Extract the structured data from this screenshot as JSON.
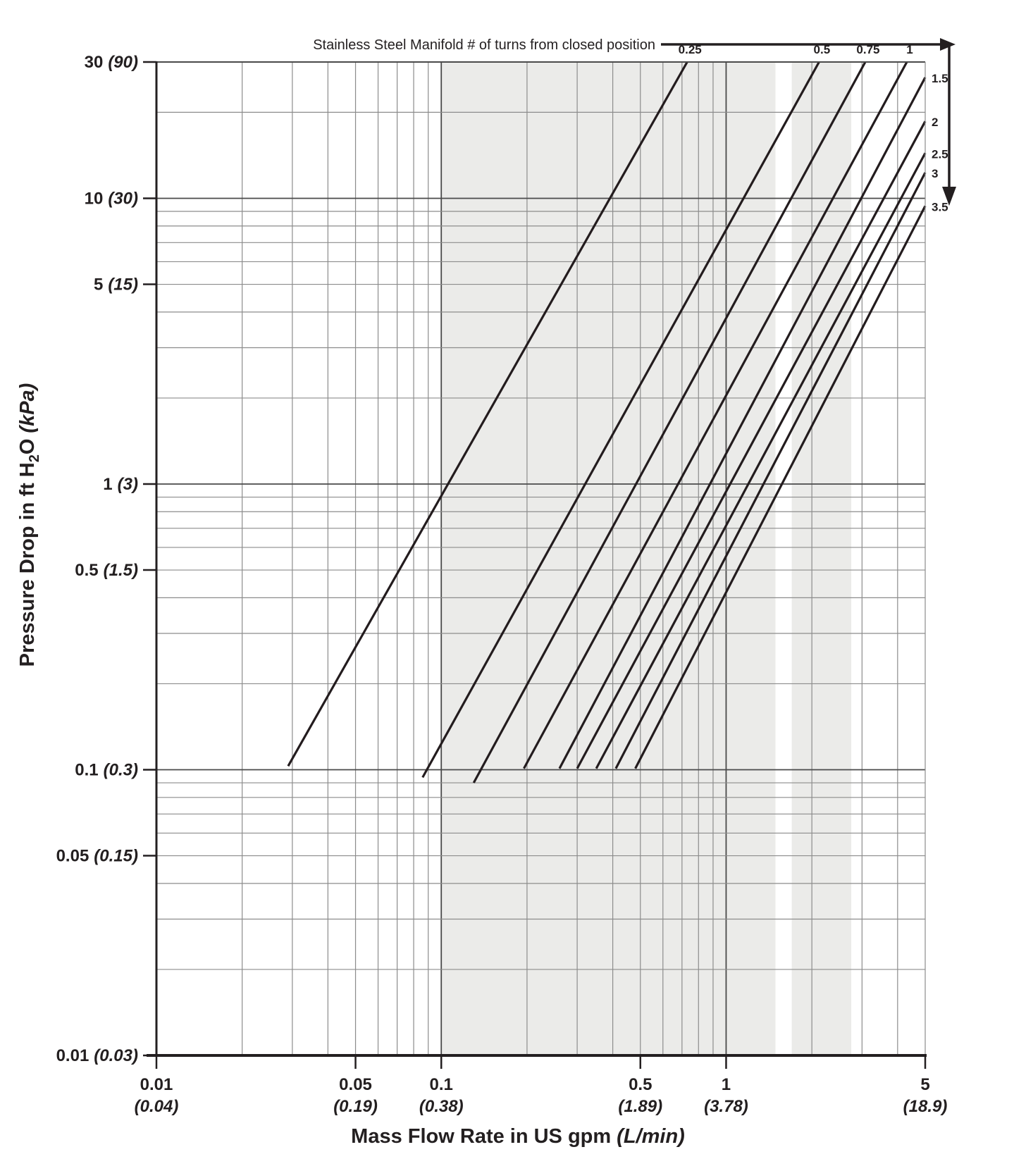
{
  "page": {
    "background": "#ffffff"
  },
  "chart_data": {
    "type": "line",
    "scale": "log-log",
    "title": "Stainless Steel Manifold # of turns from closed position",
    "grid": "on",
    "band_color": "#ebebe9",
    "curve_color": "#231c1e",
    "shaded_bands_gpm": [
      [
        0.1,
        1.49
      ],
      [
        1.7,
        2.75
      ]
    ],
    "x_axis": {
      "title_pre": "Mass Flow Rate in US gpm",
      "title_unit": "(L/min)",
      "range_gpm": [
        0.01,
        5
      ],
      "ticks": [
        {
          "v": 0.01,
          "main": "0.01",
          "alt": "(0.04)"
        },
        {
          "v": 0.05,
          "main": "0.05",
          "alt": "(0.19)"
        },
        {
          "v": 0.1,
          "main": "0.1",
          "alt": "(0.38)"
        },
        {
          "v": 0.5,
          "main": "0.5",
          "alt": "(1.89)"
        },
        {
          "v": 1,
          "main": "1",
          "alt": "(3.78)"
        },
        {
          "v": 5,
          "main": "5",
          "alt": "(18.9)"
        }
      ],
      "minor_gridlines": [
        0.02,
        0.03,
        0.04,
        0.05,
        0.06,
        0.07,
        0.08,
        0.09,
        0.2,
        0.3,
        0.4,
        0.5,
        0.6,
        0.7,
        0.8,
        0.9,
        2,
        3,
        4
      ],
      "major_gridlines": [
        0.1,
        1
      ]
    },
    "y_axis": {
      "title_pre": "Pressure Drop in ft H",
      "title_sub": "2",
      "title_post": "O",
      "title_unit": "(kPa)",
      "range_ft_h2o": [
        0.01,
        30
      ],
      "ticks": [
        {
          "v": 30,
          "main": "30",
          "alt": "(90)"
        },
        {
          "v": 10,
          "main": "10",
          "alt": "(30)"
        },
        {
          "v": 5,
          "main": "5",
          "alt": "(15)"
        },
        {
          "v": 1,
          "main": "1",
          "alt": "(3)"
        },
        {
          "v": 0.5,
          "main": "0.5",
          "alt": "(1.5)"
        },
        {
          "v": 0.1,
          "main": "0.1",
          "alt": "(0.3)"
        },
        {
          "v": 0.05,
          "main": "0.05",
          "alt": "(0.15)"
        },
        {
          "v": 0.01,
          "main": "0.01",
          "alt": "(0.03)"
        }
      ],
      "minor_gridlines": [
        0.02,
        0.03,
        0.04,
        0.05,
        0.06,
        0.07,
        0.08,
        0.09,
        0.2,
        0.3,
        0.4,
        0.5,
        0.6,
        0.7,
        0.8,
        0.9,
        2,
        3,
        4,
        5,
        6,
        7,
        8,
        9,
        20
      ],
      "major_gridlines": [
        0.1,
        1,
        10
      ]
    },
    "series": [
      {
        "turns": "0.25",
        "label_side": "top",
        "from_gpm_ft": [
          0.029,
          0.103
        ],
        "to_gpm_ft": [
          0.73,
          30
        ]
      },
      {
        "turns": "0.5",
        "label_side": "top",
        "from_gpm_ft": [
          0.086,
          0.094
        ],
        "to_gpm_ft": [
          2.12,
          30
        ]
      },
      {
        "turns": "0.75",
        "label_side": "top",
        "from_gpm_ft": [
          0.13,
          0.09
        ],
        "to_gpm_ft": [
          3.08,
          30
        ]
      },
      {
        "turns": "1",
        "label_side": "top",
        "from_gpm_ft": [
          0.195,
          0.101
        ],
        "to_gpm_ft": [
          4.31,
          30
        ]
      },
      {
        "turns": "1.5",
        "label_side": "right",
        "from_gpm_ft": [
          0.26,
          0.101
        ],
        "to_gpm_ft": [
          5,
          26.5
        ]
      },
      {
        "turns": "2",
        "label_side": "right",
        "from_gpm_ft": [
          0.3,
          0.101
        ],
        "to_gpm_ft": [
          5,
          18.6
        ]
      },
      {
        "turns": "2.5",
        "label_side": "right",
        "from_gpm_ft": [
          0.35,
          0.101
        ],
        "to_gpm_ft": [
          5,
          14.4
        ]
      },
      {
        "turns": "3",
        "label_side": "right",
        "from_gpm_ft": [
          0.41,
          0.101
        ],
        "to_gpm_ft": [
          5,
          12.3
        ]
      },
      {
        "turns": "3.5",
        "label_side": "right",
        "from_gpm_ft": [
          0.48,
          0.101
        ],
        "to_gpm_ft": [
          5,
          9.4
        ]
      }
    ]
  }
}
